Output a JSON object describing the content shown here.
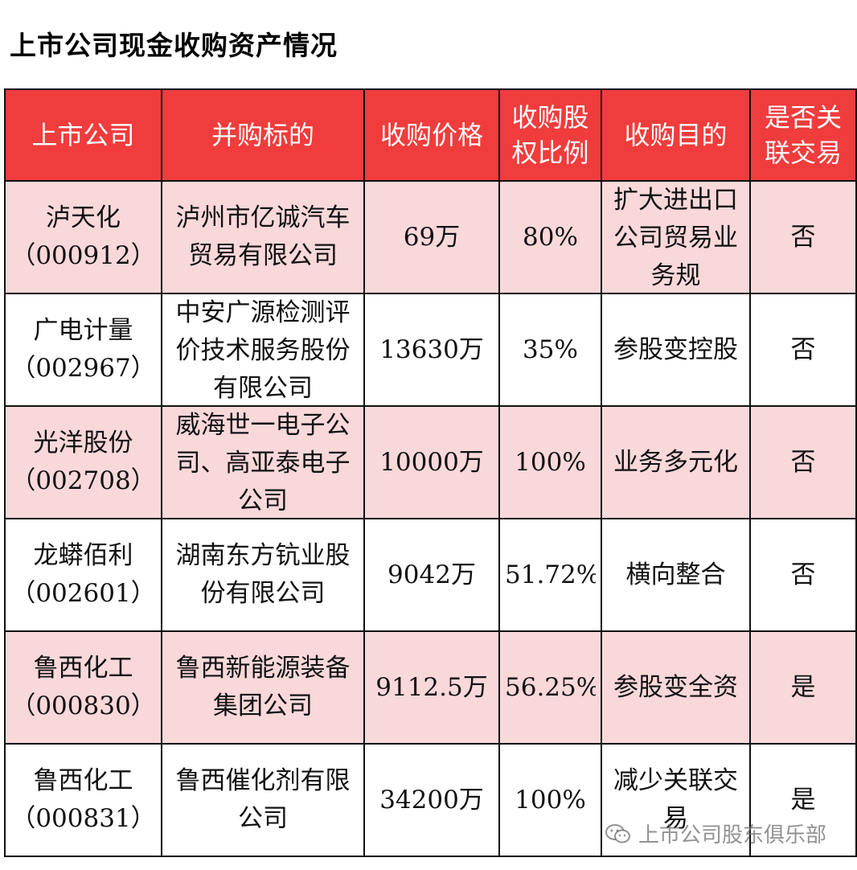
{
  "title": "上市公司现金收购资产情况",
  "table": {
    "headers": [
      "上市公司",
      "并购标的",
      "收购价格",
      "收购股权比例",
      "收购目的",
      "是否关联交易"
    ],
    "rows": [
      {
        "company": "泸天化（000912）",
        "target": "泸州市亿诚汽车贸易有限公司",
        "price": "69万",
        "ratio": "80%",
        "purpose": "扩大进出口公司贸易业务规",
        "related": "否"
      },
      {
        "company": "广电计量（002967）",
        "target": "中安广源检测评价技术服务股份有限公司",
        "price": "13630万",
        "ratio": "35%",
        "purpose": "参股变控股",
        "related": "否"
      },
      {
        "company": "光洋股份（002708）",
        "target": "威海世一电子公司、高亚泰电子公司",
        "price": "10000万",
        "ratio": "100%",
        "purpose": "业务多元化",
        "related": "否"
      },
      {
        "company": "龙蟒佰利（002601）",
        "target": "湖南东方钪业股份有限公司",
        "price": "9042万",
        "ratio": "51.72%",
        "purpose": "横向整合",
        "related": "否"
      },
      {
        "company": "鲁西化工（000830）",
        "target": "鲁西新能源装备集团公司",
        "price": "9112.5万",
        "ratio": "56.25%",
        "purpose": "参股变全资",
        "related": "是"
      },
      {
        "company": "鲁西化工（000831）",
        "target": "鲁西催化剂有限公司",
        "price": "34200万",
        "ratio": "100%",
        "purpose": "减少关联交易",
        "related": "是"
      }
    ]
  },
  "watermark": {
    "text": "上市公司股东俱乐部",
    "icon": "wechat-icon"
  }
}
